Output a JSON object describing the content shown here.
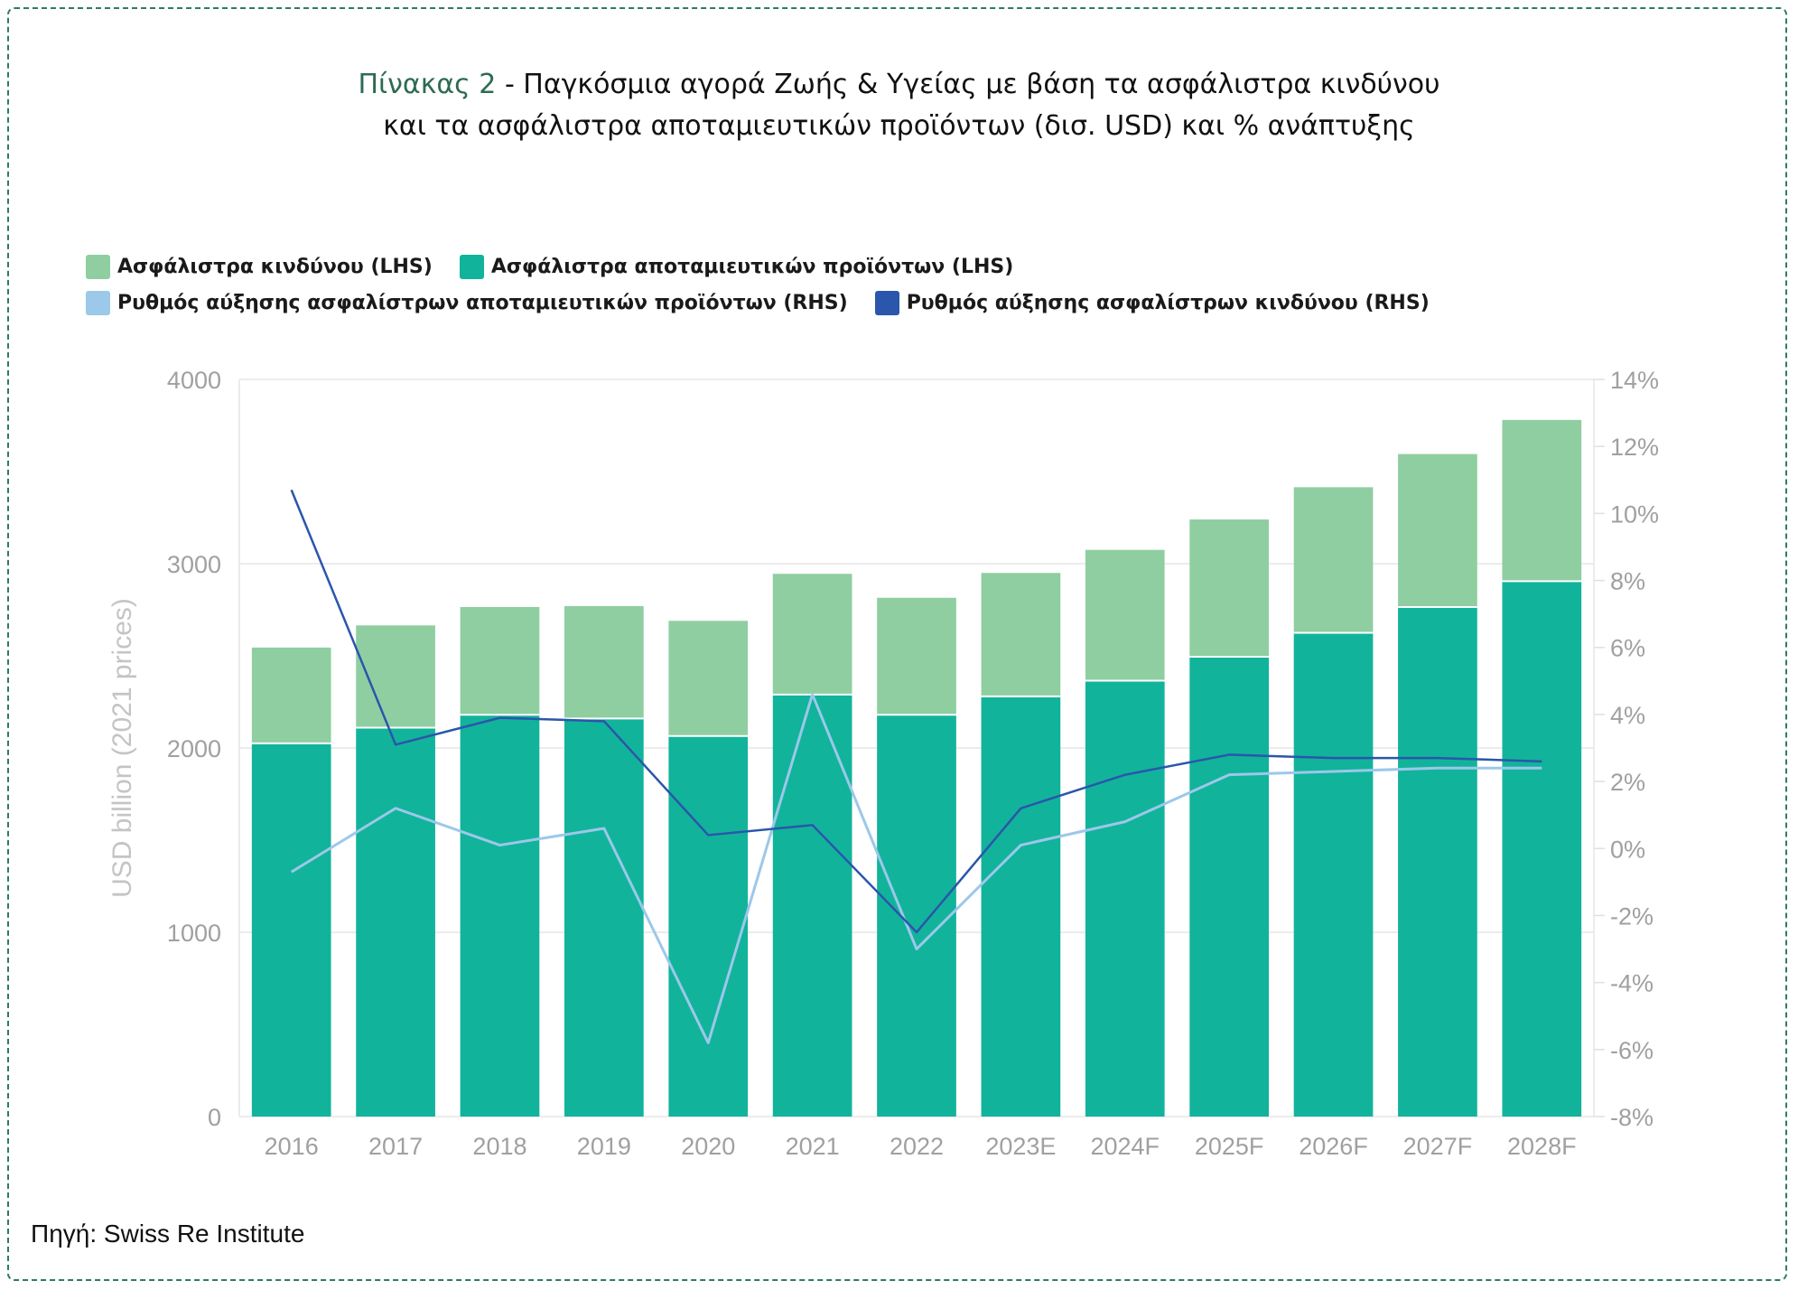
{
  "title": {
    "prefix": "Πίνακας 2",
    "line1": " - Παγκόσμια αγορά Ζωής & Υγείας με βάση τα ασφάλιστρα κινδύνου",
    "line2": "και τα ασφάλιστρα αποταμιευτικών προϊόντων (δισ. USD) και % ανάπτυξης"
  },
  "legend": {
    "risk_bar": "Ασφάλιστρα κινδύνου (LHS)",
    "savings_bar": "Ασφάλιστρα αποταμιευτικών προϊόντων (LHS)",
    "savings_growth": "Ρυθμός αύξησης ασφαλίστρων αποταμιευτικών προϊόντων (RHS)",
    "risk_growth": "Ρυθμός αύξησης ασφαλίστρων κινδύνου (RHS)"
  },
  "source": "Πηγή: Swiss Re Institute",
  "colors": {
    "risk_bar": "#8fcea1",
    "savings_bar": "#12b39b",
    "savings_growth": "#9cc8ea",
    "risk_growth": "#2a56ab",
    "frame": "#2e7d5b"
  },
  "chart_data": {
    "type": "bar",
    "stacked": true,
    "categories": [
      "2016",
      "2017",
      "2018",
      "2019",
      "2020",
      "2021",
      "2022",
      "2023E",
      "2024F",
      "2025F",
      "2026F",
      "2027F",
      "2028F"
    ],
    "series": [
      {
        "name": "Ασφάλιστρα αποταμιευτικών προϊόντων (LHS)",
        "axis": "left",
        "values": [
          2025,
          2110,
          2180,
          2160,
          2065,
          2290,
          2180,
          2280,
          2365,
          2495,
          2625,
          2765,
          2905
        ]
      },
      {
        "name": "Ασφάλιστρα κινδύνου (LHS)",
        "axis": "left",
        "values": [
          520,
          555,
          585,
          610,
          625,
          655,
          635,
          670,
          710,
          745,
          790,
          830,
          875
        ]
      }
    ],
    "lines": [
      {
        "name": "Ρυθμός αύξησης ασφαλίστρων αποταμιευτικών προϊόντων (RHS)",
        "axis": "right",
        "values": [
          -0.7,
          1.2,
          0.1,
          0.6,
          -5.8,
          4.6,
          -3.0,
          0.1,
          0.8,
          2.2,
          2.3,
          2.4,
          2.4
        ]
      },
      {
        "name": "Ρυθμός αύξησης ασφαλίστρων κινδύνου (RHS)",
        "axis": "right",
        "values": [
          10.7,
          3.1,
          3.9,
          3.8,
          0.4,
          0.7,
          -2.5,
          1.2,
          2.2,
          2.8,
          2.7,
          2.7,
          2.6
        ]
      }
    ],
    "ylabel": "USD billion (2021 prices)",
    "ylim": [
      0,
      4000
    ],
    "yticks": [
      0,
      1000,
      2000,
      3000,
      4000
    ],
    "y2lim": [
      -8,
      14
    ],
    "y2ticks": [
      "-8%",
      "-6%",
      "-4%",
      "-2%",
      "0%",
      "2%",
      "4%",
      "6%",
      "8%",
      "10%",
      "12%",
      "14%"
    ],
    "grid": true,
    "legend_position": "top-left"
  }
}
